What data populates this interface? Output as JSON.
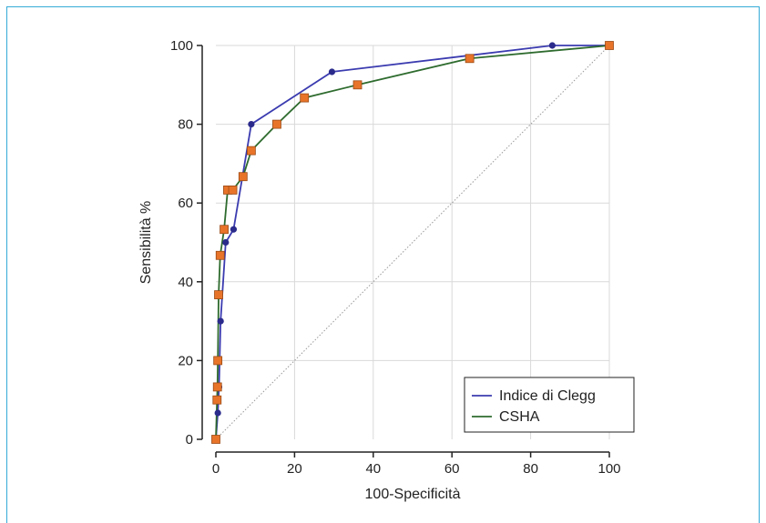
{
  "colors": {
    "frame": "#35aad6",
    "grid": "#d9d9d9",
    "axis": "#222222",
    "clegg_line": "#3b3bb0",
    "clegg_marker": "#2b2b8c",
    "csha_line": "#2e6b2e",
    "csha_marker": "#e8742a",
    "csha_marker_edge": "#9a4a15",
    "diagonal": "#999999"
  },
  "chart_data": {
    "type": "line",
    "title": "",
    "xlabel": "100-Specificità",
    "ylabel": "Sensibilità %",
    "xlim": [
      0,
      100
    ],
    "ylim": [
      0,
      100
    ],
    "xticks": [
      0,
      20,
      40,
      60,
      80,
      100
    ],
    "yticks": [
      0,
      20,
      40,
      60,
      80,
      100
    ],
    "grid": true,
    "legend_position": "bottom-right",
    "reference_line": {
      "x": [
        0,
        100
      ],
      "y": [
        0,
        100
      ],
      "style": "dotted"
    },
    "series": [
      {
        "name": "Indice di Clegg",
        "marker": "circle",
        "x": [
          0,
          0.5,
          0.8,
          1.2,
          2.5,
          4.5,
          9,
          29.5,
          85.5,
          100
        ],
        "y": [
          0,
          6.7,
          13.3,
          30,
          50,
          53.3,
          80,
          93.3,
          100,
          100
        ]
      },
      {
        "name": "CSHA",
        "marker": "square",
        "x": [
          0,
          0.3,
          0.4,
          0.5,
          0.7,
          1.1,
          2.1,
          3,
          4.3,
          6.9,
          9,
          15.5,
          22.5,
          36,
          64.5,
          100
        ],
        "y": [
          0,
          10,
          13.3,
          20,
          36.7,
          46.7,
          53.3,
          63.3,
          63.3,
          66.7,
          73.3,
          80,
          86.7,
          90,
          96.7,
          100
        ]
      }
    ]
  }
}
